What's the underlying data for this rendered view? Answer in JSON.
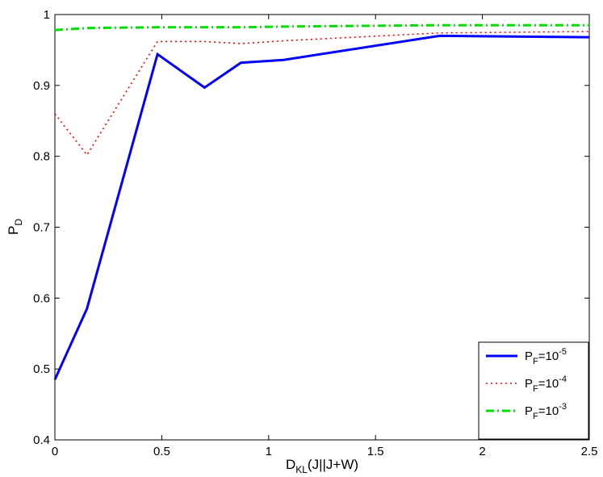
{
  "chart_data": {
    "type": "line",
    "title": "",
    "xlabel": {
      "main": "D",
      "sub": "KL",
      "rest": "(J||J+W)"
    },
    "ylabel": {
      "main": "P",
      "sub": "D"
    },
    "xlim": [
      0,
      2.5
    ],
    "ylim": [
      0.4,
      1.0
    ],
    "xticks": [
      "0",
      "0.5",
      "1",
      "1.5",
      "2",
      "2.5"
    ],
    "yticks": [
      "0.4",
      "0.5",
      "0.6",
      "0.7",
      "0.8",
      "0.9",
      "1"
    ],
    "grid": false,
    "legend_position": "bottom-right",
    "series": [
      {
        "name": {
          "main": "P",
          "sub": "F",
          "eq": "=10",
          "sup": "-5"
        },
        "color": "#0000ff",
        "style": "solid",
        "x": [
          0,
          0.15,
          0.48,
          0.7,
          0.87,
          1.07,
          1.8,
          2.5
        ],
        "y": [
          0.485,
          0.585,
          0.944,
          0.897,
          0.932,
          0.936,
          0.97,
          0.968
        ]
      },
      {
        "name": {
          "main": "P",
          "sub": "F",
          "eq": "=10",
          "sup": "-4"
        },
        "color": "#ff0000",
        "style": "dotted",
        "x": [
          0,
          0.15,
          0.48,
          0.7,
          0.87,
          1.07,
          1.8,
          2.5
        ],
        "y": [
          0.86,
          0.802,
          0.962,
          0.962,
          0.959,
          0.963,
          0.974,
          0.976
        ]
      },
      {
        "name": {
          "main": "P",
          "sub": "F",
          "eq": "=10",
          "sup": "-3"
        },
        "color": "#00dd00",
        "style": "dashdot",
        "x": [
          0,
          0.15,
          0.48,
          0.7,
          0.87,
          1.07,
          1.8,
          2.5
        ],
        "y": [
          0.978,
          0.981,
          0.982,
          0.982,
          0.982,
          0.983,
          0.985,
          0.985
        ]
      }
    ]
  }
}
